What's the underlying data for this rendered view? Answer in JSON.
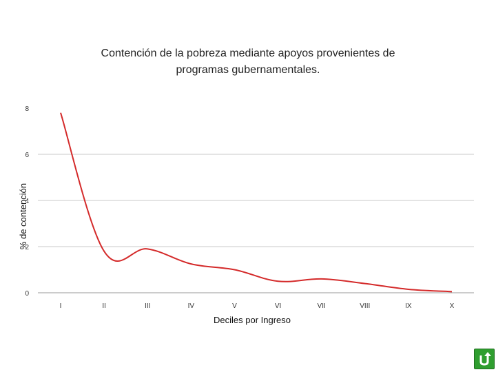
{
  "chart_data": {
    "type": "line",
    "title_lines": [
      "Contención de la pobreza mediante apoyos provenientes de",
      "programas gubernamentales."
    ],
    "xlabel": "Deciles por Ingreso",
    "ylabel": "% de contención",
    "categories": [
      "I",
      "II",
      "III",
      "IV",
      "V",
      "VI",
      "VII",
      "VIII",
      "IX",
      "X"
    ],
    "series": [
      {
        "values": [
          7.8,
          1.8,
          1.9,
          1.25,
          1.0,
          0.5,
          0.6,
          0.4,
          0.15,
          0.05
        ],
        "color": "#d42a2a"
      }
    ],
    "ylim": [
      0,
      8
    ],
    "yticks": [
      0,
      2,
      4,
      6,
      8
    ],
    "grid": "horizontal"
  },
  "nav": {
    "icon": "return-arrow-icon",
    "color": "#2f9e2f"
  }
}
